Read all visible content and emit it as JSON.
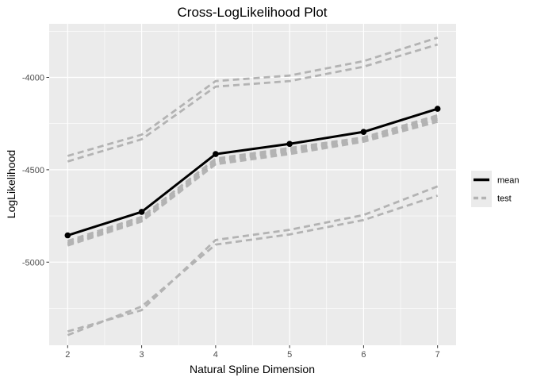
{
  "chart_data": {
    "type": "line",
    "title": "Cross-LogLikelihood Plot",
    "xlabel": "Natural Spline Dimension",
    "ylabel": "LogLikelihood",
    "x": [
      2,
      3,
      4,
      5,
      6,
      7
    ],
    "x_ticks": [
      2,
      3,
      4,
      5,
      6,
      7
    ],
    "x_tick_labels": [
      "2",
      "3",
      "4",
      "5",
      "6",
      "7"
    ],
    "y_ticks": [
      -5000,
      -4500,
      -4000
    ],
    "y_tick_labels": [
      "-5000",
      "-4500",
      "-4000"
    ],
    "xlim": [
      1.75,
      7.25
    ],
    "ylim": [
      -5450,
      -3710
    ],
    "grid": true,
    "legend": "right",
    "colors": {
      "mean": "#000000",
      "test": "#b3b3b3",
      "panel": "#ebebeb",
      "grid": "#ffffff"
    },
    "series": [
      {
        "name": "mean",
        "style": "solid",
        "points": true,
        "values": [
          -4855,
          -4728,
          -4415,
          -4360,
          -4295,
          -4170
        ]
      },
      {
        "name": "test",
        "style": "dashed",
        "lines": [
          [
            -4895,
            -4762,
            -4448,
            -4390,
            -4332,
            -4218
          ],
          [
            -4885,
            -4755,
            -4440,
            -4382,
            -4325,
            -4205
          ],
          [
            -4905,
            -4775,
            -4465,
            -4410,
            -4342,
            -4228
          ],
          [
            -4910,
            -4780,
            -4470,
            -4415,
            -4348,
            -4240
          ],
          [
            -4900,
            -4770,
            -4455,
            -4400,
            -4337,
            -4212
          ],
          [
            -4425,
            -4310,
            -4020,
            -3990,
            -3912,
            -3785
          ],
          [
            -4455,
            -4335,
            -4050,
            -4020,
            -3942,
            -3822
          ],
          [
            -5375,
            -5260,
            -4880,
            -4825,
            -4745,
            -4590
          ],
          [
            -5395,
            -5240,
            -4905,
            -4850,
            -4772,
            -4640
          ]
        ]
      }
    ]
  }
}
